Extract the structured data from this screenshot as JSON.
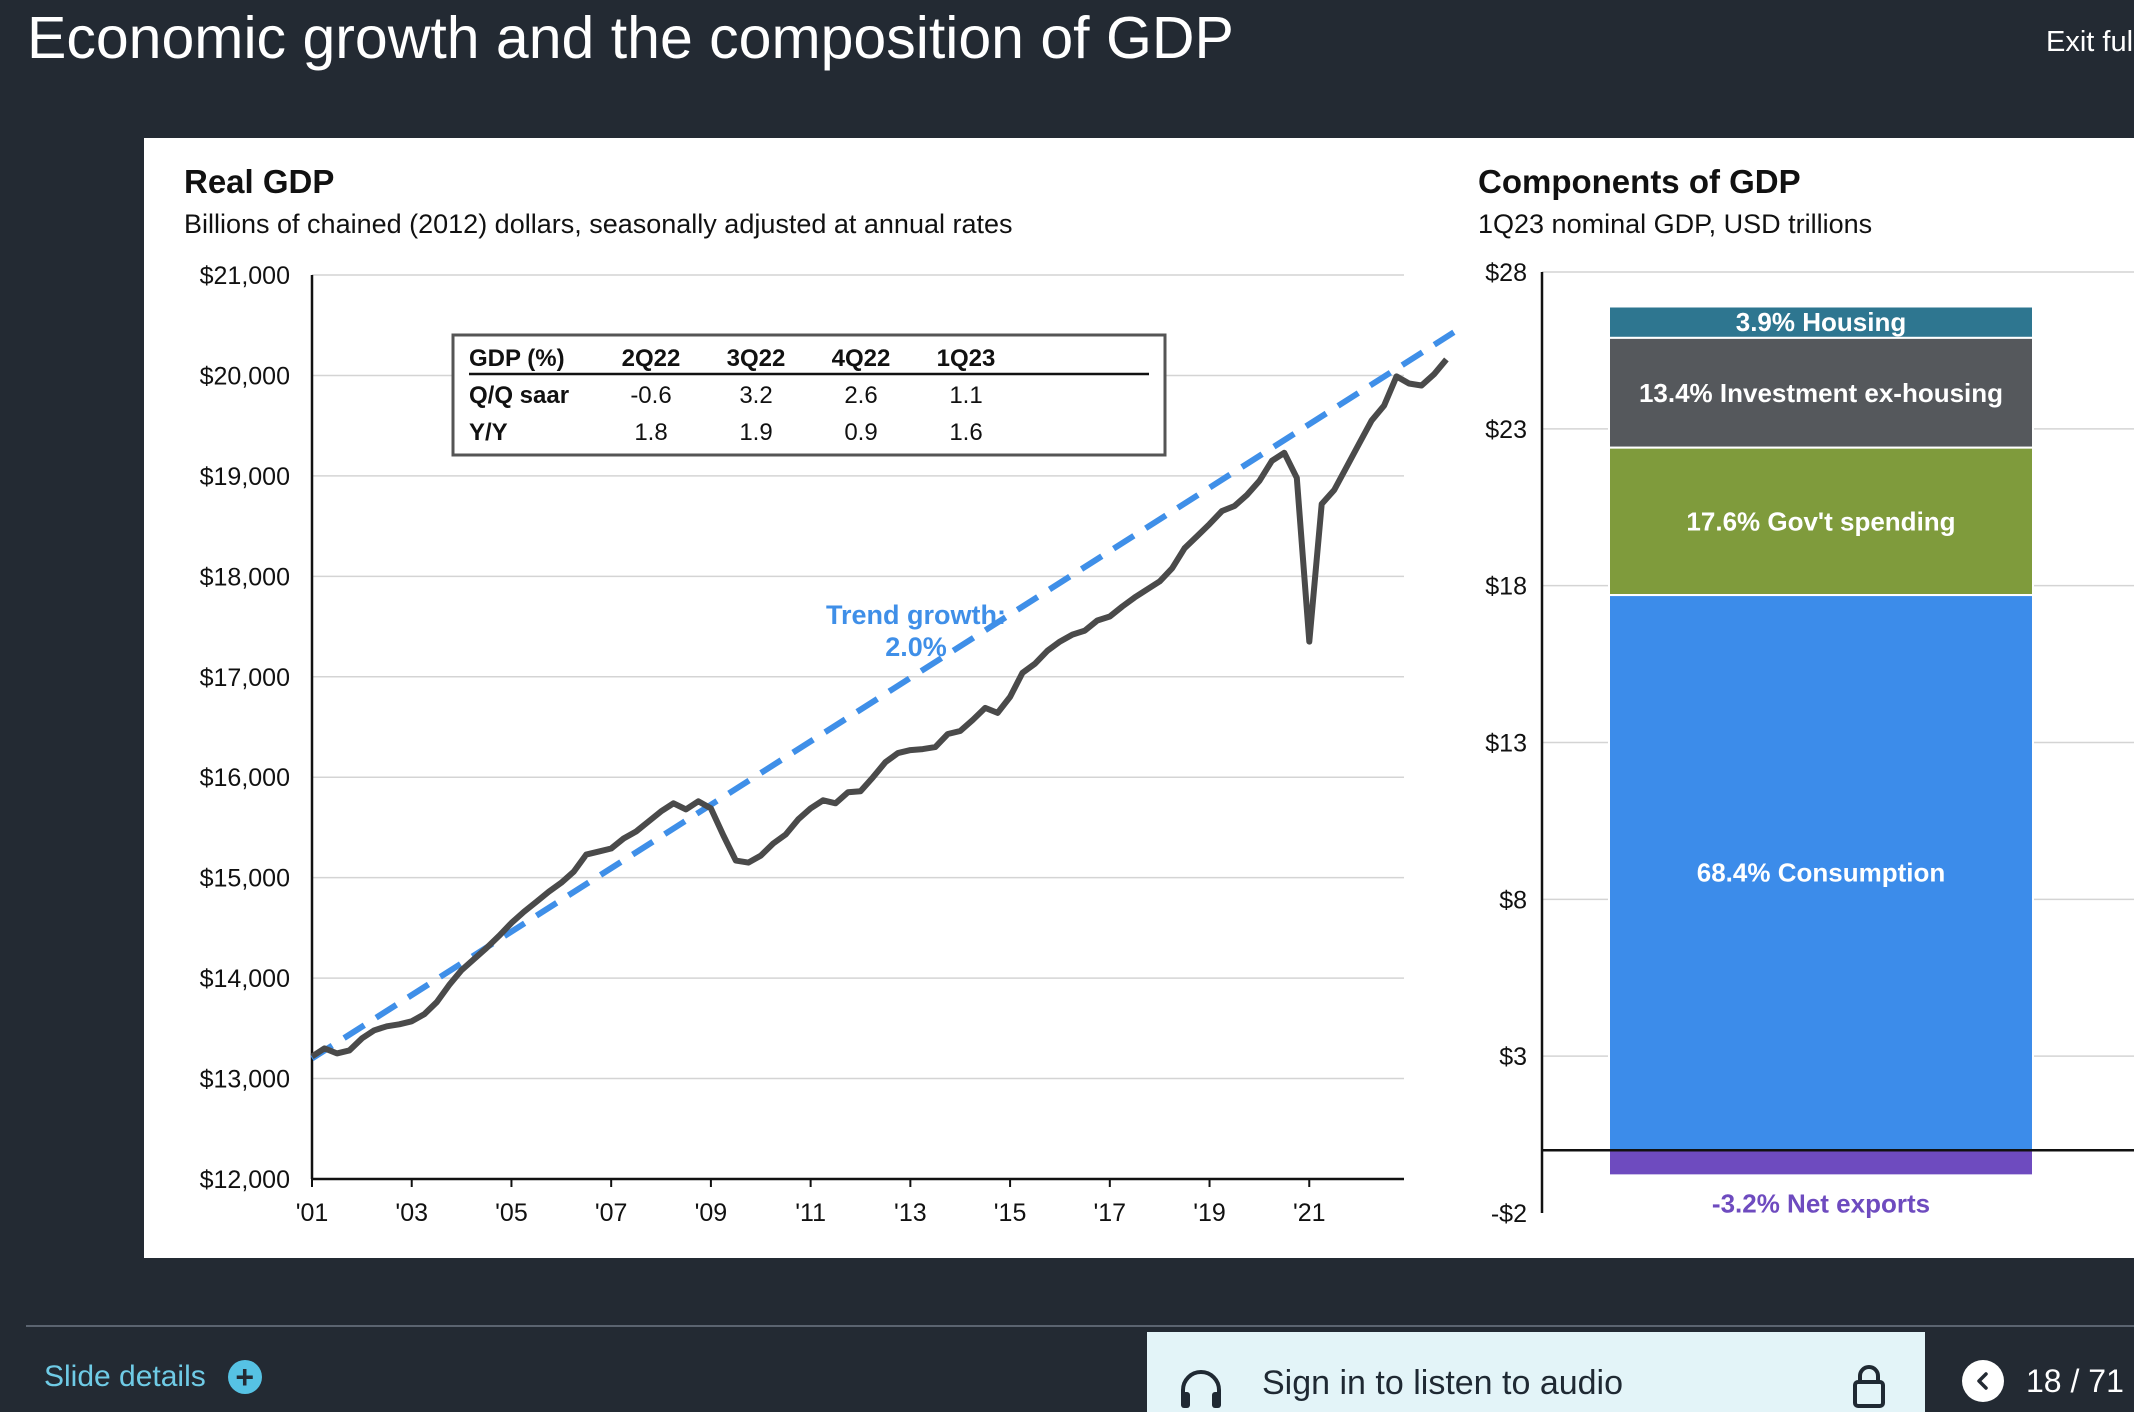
{
  "page": {
    "title": "Economic growth and the composition of GDP",
    "exit_label": "Exit full",
    "slide_details_label": "Slide details",
    "audio_label": "Sign in to listen to audio",
    "page_indicator": "18 / 71"
  },
  "icons": {
    "plus": "plus-icon",
    "headphones": "headphones-icon",
    "lock": "lock-icon",
    "prev": "chevron-left-icon"
  },
  "colors": {
    "background": "#232a33",
    "link": "#6fcbe6",
    "gdp_line": "#4a4a4a",
    "trend": "#3f8fe8",
    "housing": "#2e7690",
    "investment": "#55585c",
    "gov": "#7f9b3c",
    "consumption": "#3c8cea",
    "net_exports": "#6e4bbf"
  },
  "gdp_table": {
    "headers": [
      "GDP (%)",
      "2Q22",
      "3Q22",
      "4Q22",
      "1Q23"
    ],
    "rows": [
      [
        "Q/Q saar",
        "-0.6",
        "3.2",
        "2.6",
        "1.1"
      ],
      [
        "Y/Y",
        "1.8",
        "1.9",
        "0.9",
        "1.6"
      ]
    ]
  },
  "chart_data": [
    {
      "type": "line",
      "title": "Real GDP",
      "subtitle": "Billions of chained (2012) dollars, seasonally adjusted at annual rates",
      "xlabel": "",
      "ylabel": "",
      "xlim": [
        2001,
        2022.9
      ],
      "ylim": [
        12000,
        21000
      ],
      "yticks": [
        21000,
        20000,
        19000,
        18000,
        17000,
        16000,
        15000,
        14000,
        13000,
        12000
      ],
      "ytick_labels": [
        "$21,000",
        "$20,000",
        "$19,000",
        "$18,000",
        "$17,000",
        "$16,000",
        "$15,000",
        "$14,000",
        "$13,000",
        "$12,000"
      ],
      "xticks": [
        2001,
        2003,
        2005,
        2007,
        2009,
        2011,
        2013,
        2015,
        2017,
        2019,
        2021
      ],
      "xtick_labels": [
        "'01",
        "'03",
        "'05",
        "'07",
        "'09",
        "'11",
        "'13",
        "'15",
        "'17",
        "'19",
        "'21"
      ],
      "grid": true,
      "series": [
        {
          "name": "Real GDP",
          "style": "solid",
          "points": [
            [
              2001.0,
              13220
            ],
            [
              2001.25,
              13300
            ],
            [
              2001.5,
              13250
            ],
            [
              2001.75,
              13280
            ],
            [
              2002.0,
              13400
            ],
            [
              2002.25,
              13480
            ],
            [
              2002.5,
              13520
            ],
            [
              2002.75,
              13540
            ],
            [
              2003.0,
              13570
            ],
            [
              2003.25,
              13640
            ],
            [
              2003.5,
              13760
            ],
            [
              2003.75,
              13930
            ],
            [
              2004.0,
              14080
            ],
            [
              2004.25,
              14190
            ],
            [
              2004.5,
              14300
            ],
            [
              2004.75,
              14420
            ],
            [
              2005.0,
              14550
            ],
            [
              2005.25,
              14660
            ],
            [
              2005.5,
              14760
            ],
            [
              2005.75,
              14860
            ],
            [
              2006.0,
              14950
            ],
            [
              2006.25,
              15060
            ],
            [
              2006.5,
              15230
            ],
            [
              2006.75,
              15260
            ],
            [
              2007.0,
              15290
            ],
            [
              2007.25,
              15390
            ],
            [
              2007.5,
              15460
            ],
            [
              2007.75,
              15560
            ],
            [
              2008.0,
              15660
            ],
            [
              2008.25,
              15740
            ],
            [
              2008.5,
              15680
            ],
            [
              2008.75,
              15760
            ],
            [
              2009.0,
              15690
            ],
            [
              2009.25,
              15420
            ],
            [
              2009.5,
              15170
            ],
            [
              2009.75,
              15150
            ],
            [
              2010.0,
              15220
            ],
            [
              2010.25,
              15340
            ],
            [
              2010.5,
              15430
            ],
            [
              2010.75,
              15580
            ],
            [
              2011.0,
              15690
            ],
            [
              2011.25,
              15770
            ],
            [
              2011.5,
              15740
            ],
            [
              2011.75,
              15850
            ],
            [
              2012.0,
              15860
            ],
            [
              2012.25,
              16000
            ],
            [
              2012.5,
              16150
            ],
            [
              2012.75,
              16240
            ],
            [
              2013.0,
              16270
            ],
            [
              2013.25,
              16280
            ],
            [
              2013.5,
              16300
            ],
            [
              2013.75,
              16430
            ],
            [
              2014.0,
              16460
            ],
            [
              2014.25,
              16570
            ],
            [
              2014.5,
              16690
            ],
            [
              2014.75,
              16640
            ],
            [
              2015.0,
              16800
            ],
            [
              2015.25,
              17040
            ],
            [
              2015.5,
              17130
            ],
            [
              2015.75,
              17260
            ],
            [
              2016.0,
              17350
            ],
            [
              2016.25,
              17420
            ],
            [
              2016.5,
              17460
            ],
            [
              2016.75,
              17560
            ],
            [
              2017.0,
              17600
            ],
            [
              2017.25,
              17700
            ],
            [
              2017.5,
              17790
            ],
            [
              2017.75,
              17870
            ],
            [
              2018.0,
              17950
            ],
            [
              2018.25,
              18080
            ],
            [
              2018.5,
              18280
            ],
            [
              2018.75,
              18400
            ],
            [
              2019.0,
              18520
            ],
            [
              2019.25,
              18650
            ],
            [
              2019.5,
              18700
            ],
            [
              2019.75,
              18810
            ],
            [
              2020.0,
              18950
            ],
            [
              2020.25,
              19150
            ],
            [
              2020.5,
              19230
            ],
            [
              2020.75,
              18980
            ],
            [
              2021.0,
              17350
            ],
            [
              2021.25,
              18720
            ],
            [
              2021.5,
              18860
            ],
            [
              2021.75,
              19090
            ],
            [
              2022.0,
              19320
            ],
            [
              2022.25,
              19550
            ],
            [
              2022.5,
              19700
            ],
            [
              2022.75,
              19990
            ],
            [
              2023.0,
              19920
            ],
            [
              2023.25,
              19900
            ],
            [
              2023.5,
              20010
            ],
            [
              2023.75,
              20160
            ]
          ]
        },
        {
          "name": "Trend growth",
          "style": "dashed",
          "points": [
            [
              2001,
              13200
            ],
            [
              2023.9,
              20430
            ]
          ]
        }
      ],
      "annotations": [
        "Trend growth:",
        "2.0%"
      ]
    },
    {
      "type": "bar",
      "title": "Components of GDP",
      "subtitle": "1Q23 nominal GDP, USD trillions",
      "ylim": [
        -2,
        28
      ],
      "yticks": [
        28,
        23,
        18,
        13,
        8,
        3,
        -2
      ],
      "ytick_labels": [
        "$28",
        "$23",
        "$18",
        "$13",
        "$8",
        "$3",
        "-$2"
      ],
      "grid": true,
      "stacked": true,
      "series": [
        {
          "name": "Housing",
          "label": "3.9% Housing",
          "bottom": 25.9,
          "top": 26.9
        },
        {
          "name": "Investment ex-housing",
          "label": "13.4% Investment ex-housing",
          "bottom": 22.4,
          "top": 25.9
        },
        {
          "name": "Gov't spending",
          "label": "17.6% Gov't  spending",
          "bottom": 17.7,
          "top": 22.4
        },
        {
          "name": "Consumption",
          "label": "68.4% Consumption",
          "bottom": 0,
          "top": 17.7
        },
        {
          "name": "Net exports",
          "label": "-3.2% Net exports",
          "bottom": -0.8,
          "top": 0
        }
      ]
    }
  ]
}
